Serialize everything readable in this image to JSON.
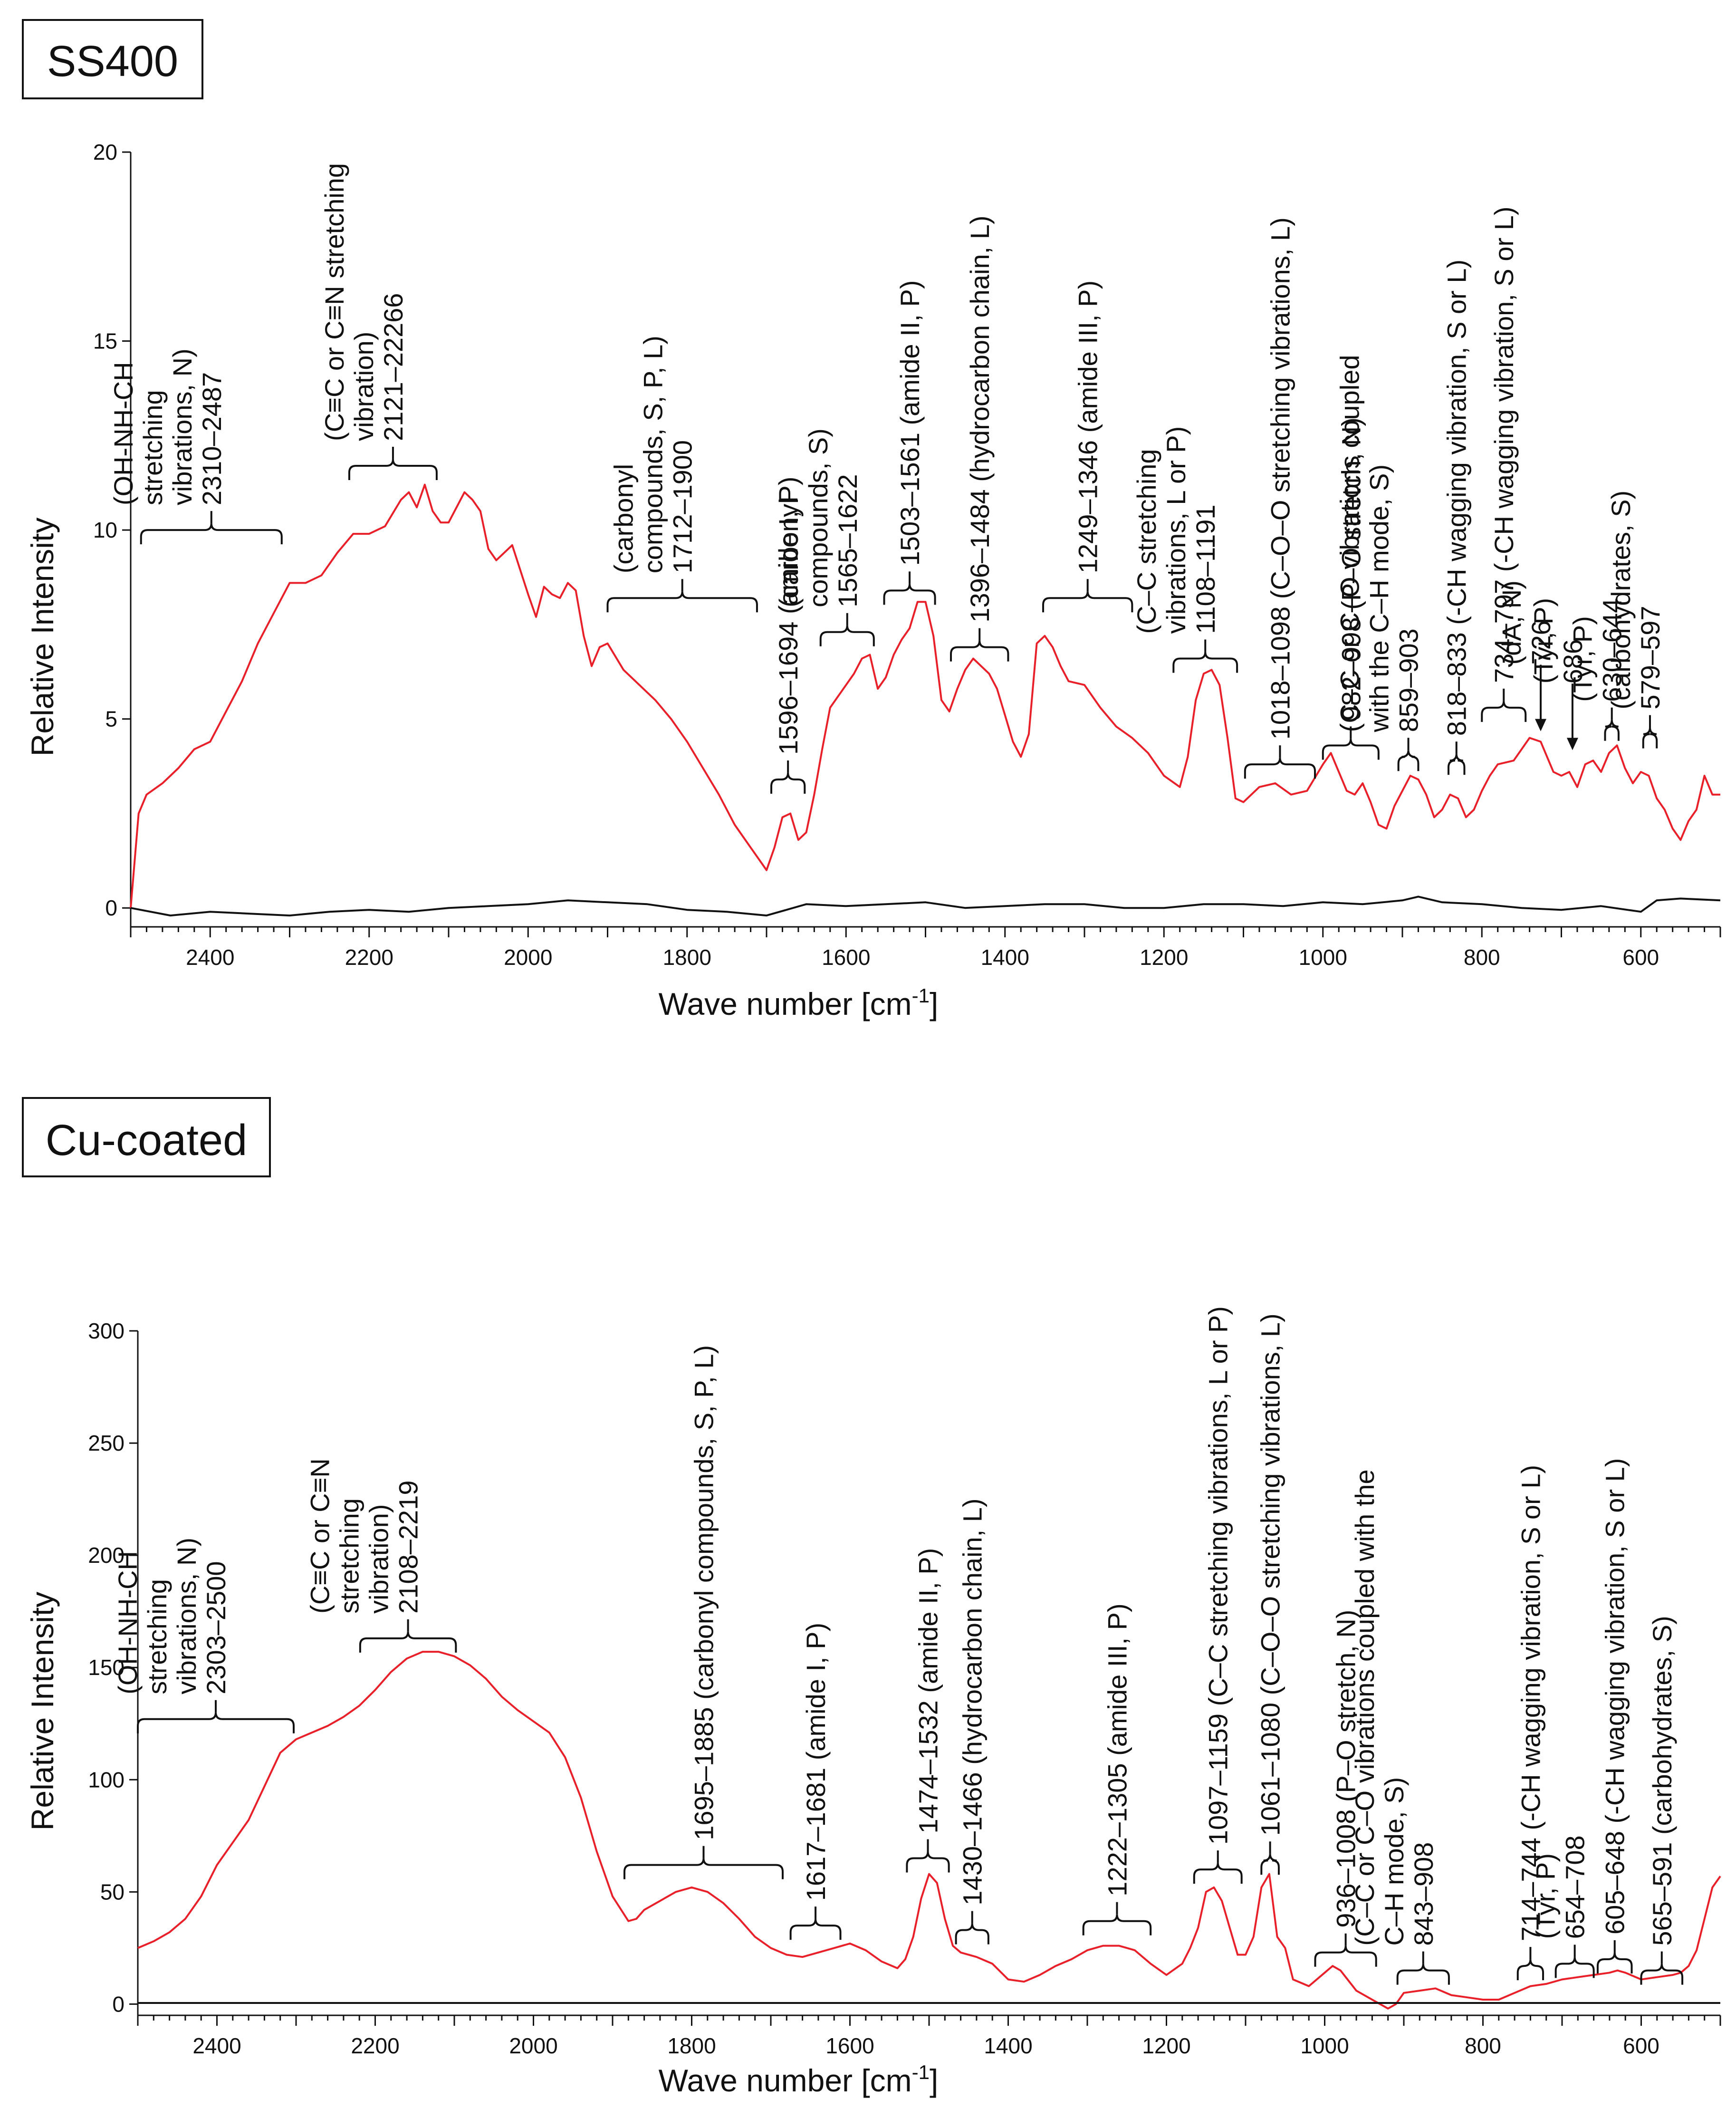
{
  "chart_data": [
    {
      "type": "line",
      "panel_label": "SS400",
      "xlabel_main": "Wave number [cm",
      "xlabel_sup": "-1",
      "xlabel_end": "]",
      "ylabel": "Relative Intensity",
      "xlim": [
        2500,
        500
      ],
      "ylim": [
        -0.5,
        20
      ],
      "xticks": [
        2400,
        2200,
        2000,
        1800,
        1600,
        1400,
        1200,
        1000,
        800,
        600
      ],
      "yticks": [
        0,
        5,
        10,
        15,
        20
      ],
      "series": [
        {
          "name": "SS400 spectrum",
          "color": "#e8202a",
          "x": [
            2500,
            2490,
            2480,
            2460,
            2440,
            2420,
            2400,
            2380,
            2360,
            2340,
            2320,
            2300,
            2280,
            2260,
            2240,
            2220,
            2200,
            2180,
            2160,
            2150,
            2140,
            2130,
            2120,
            2110,
            2100,
            2090,
            2080,
            2070,
            2060,
            2050,
            2040,
            2030,
            2020,
            2000,
            1990,
            1980,
            1970,
            1960,
            1950,
            1940,
            1930,
            1920,
            1910,
            1900,
            1880,
            1860,
            1840,
            1820,
            1800,
            1780,
            1760,
            1740,
            1720,
            1710,
            1700,
            1690,
            1680,
            1670,
            1660,
            1650,
            1640,
            1630,
            1620,
            1610,
            1600,
            1590,
            1580,
            1570,
            1560,
            1550,
            1540,
            1530,
            1520,
            1510,
            1500,
            1490,
            1480,
            1470,
            1460,
            1450,
            1440,
            1430,
            1420,
            1410,
            1400,
            1390,
            1380,
            1370,
            1360,
            1350,
            1340,
            1330,
            1320,
            1300,
            1280,
            1260,
            1240,
            1220,
            1200,
            1180,
            1170,
            1160,
            1150,
            1140,
            1130,
            1120,
            1110,
            1100,
            1090,
            1080,
            1060,
            1040,
            1020,
            1000,
            990,
            980,
            970,
            960,
            950,
            940,
            930,
            920,
            910,
            900,
            890,
            880,
            870,
            860,
            850,
            840,
            830,
            820,
            810,
            800,
            790,
            780,
            760,
            740,
            726,
            710,
            700,
            690,
            680,
            670,
            660,
            650,
            640,
            630,
            620,
            610,
            600,
            590,
            580,
            570,
            560,
            550,
            540,
            530,
            520,
            510,
            500
          ],
          "y": [
            0,
            2.5,
            3.0,
            3.3,
            3.7,
            4.2,
            4.4,
            5.2,
            6.0,
            7.0,
            7.8,
            8.6,
            8.6,
            8.8,
            9.4,
            9.9,
            9.9,
            10.1,
            10.8,
            11.0,
            10.6,
            11.2,
            10.5,
            10.2,
            10.2,
            10.6,
            11.0,
            10.8,
            10.5,
            9.5,
            9.2,
            9.4,
            9.6,
            8.3,
            7.7,
            8.5,
            8.3,
            8.2,
            8.6,
            8.4,
            7.2,
            6.4,
            6.9,
            7.0,
            6.3,
            5.9,
            5.5,
            5.0,
            4.4,
            3.7,
            3.0,
            2.2,
            1.6,
            1.3,
            1.0,
            1.6,
            2.4,
            2.5,
            1.8,
            2.0,
            3.0,
            4.2,
            5.3,
            5.6,
            5.9,
            6.2,
            6.6,
            6.7,
            5.8,
            6.1,
            6.7,
            7.1,
            7.4,
            8.1,
            8.1,
            7.2,
            5.5,
            5.2,
            5.8,
            6.3,
            6.6,
            6.4,
            6.2,
            5.8,
            5.1,
            4.4,
            4.0,
            4.6,
            7.0,
            7.2,
            6.9,
            6.4,
            6.0,
            5.9,
            5.3,
            4.8,
            4.5,
            4.1,
            3.5,
            3.2,
            4.0,
            5.5,
            6.2,
            6.3,
            5.9,
            4.5,
            2.9,
            2.8,
            3.0,
            3.2,
            3.3,
            3.0,
            3.1,
            3.8,
            4.1,
            3.6,
            3.1,
            3.0,
            3.3,
            2.8,
            2.2,
            2.1,
            2.7,
            3.1,
            3.5,
            3.4,
            3.0,
            2.4,
            2.6,
            3.0,
            2.9,
            2.4,
            2.6,
            3.1,
            3.5,
            3.8,
            3.9,
            4.5,
            4.4,
            3.6,
            3.5,
            3.6,
            3.2,
            3.8,
            3.9,
            3.6,
            4.1,
            4.3,
            3.7,
            3.3,
            3.6,
            3.5,
            2.9,
            2.6,
            2.1,
            1.8,
            2.3,
            2.6,
            3.5,
            3.0,
            3.0
          ]
        },
        {
          "name": "SS400 baseline",
          "color": "#111111",
          "x": [
            2500,
            2450,
            2400,
            2350,
            2300,
            2250,
            2200,
            2150,
            2100,
            2050,
            2000,
            1950,
            1900,
            1850,
            1800,
            1750,
            1700,
            1650,
            1600,
            1550,
            1500,
            1450,
            1400,
            1350,
            1300,
            1250,
            1200,
            1150,
            1100,
            1050,
            1000,
            950,
            900,
            880,
            850,
            800,
            750,
            700,
            650,
            600,
            580,
            550,
            500
          ],
          "y": [
            0,
            -0.2,
            -0.1,
            -0.15,
            -0.2,
            -0.1,
            -0.05,
            -0.1,
            0.0,
            0.05,
            0.1,
            0.2,
            0.15,
            0.1,
            -0.05,
            -0.1,
            -0.2,
            0.1,
            0.05,
            0.1,
            0.15,
            0.0,
            0.05,
            0.1,
            0.1,
            0.0,
            0.0,
            0.1,
            0.1,
            0.05,
            0.15,
            0.1,
            0.2,
            0.3,
            0.15,
            0.1,
            0.0,
            -0.05,
            0.05,
            -0.1,
            0.2,
            0.25,
            0.2
          ]
        }
      ],
      "annotations": [
        {
          "text": "2310–2487",
          "lines": [
            "(OH-NH-CH",
            "stretching",
            "vibrations, N)"
          ],
          "x1": 2487,
          "x2": 2310,
          "ybrace": 10.0
        },
        {
          "text": "2121–22266",
          "lines": [
            "(C≡C or C≡N stretching",
            "vibration)"
          ],
          "x1": 2225,
          "x2": 2115,
          "ybrace": 11.7
        },
        {
          "text": "1712–1900",
          "lines": [
            "(carbonyl",
            "compounds, S, P, L)"
          ],
          "x1": 1900,
          "x2": 1712,
          "ybrace": 8.2
        },
        {
          "text": "1596–1694 (amide I, P)",
          "lines": [],
          "x1": 1694,
          "x2": 1652,
          "ybrace": 3.4
        },
        {
          "text": "1565–1622",
          "lines": [
            "(carbonyl",
            "compounds, S)"
          ],
          "x1": 1632,
          "x2": 1565,
          "ybrace": 7.3
        },
        {
          "text": "1503–1561 (amide II, P)",
          "lines": [],
          "x1": 1552,
          "x2": 1488,
          "ybrace": 8.4
        },
        {
          "text": "1396–1484 (hydrocarbon chain, L)",
          "lines": [],
          "x1": 1468,
          "x2": 1396,
          "ybrace": 6.9
        },
        {
          "text": "1249–1346 (amide III, P)",
          "lines": [],
          "x1": 1352,
          "x2": 1240,
          "ybrace": 8.2
        },
        {
          "text": "1108–1191",
          "lines": [
            "(C–C stretching",
            "vibrations, L or P)"
          ],
          "x1": 1188,
          "x2": 1108,
          "ybrace": 6.6
        },
        {
          "text": "1018–1098 (C–O–O stretching vibrations, L)",
          "lines": [],
          "x1": 1098,
          "x2": 1010,
          "ybrace": 3.8
        },
        {
          "text": "982–998 (P–O stretch, N)",
          "lines": [],
          "x1": 1000,
          "x2": 930,
          "ybrace": 4.3
        },
        {
          "text": "859–903",
          "lines": [
            "(C–C or C–O vibrations coupled",
            "with the C–H mode, S)"
          ],
          "x1": 905,
          "x2": 880,
          "ybrace": 4.0
        },
        {
          "text": "818–833 (-CH wagging vibration, S or L)",
          "lines": [],
          "x1": 842,
          "x2": 822,
          "ybrace": 3.9
        },
        {
          "text": "734–797 (-CH wagging vibration, S or L)",
          "lines": [],
          "x1": 800,
          "x2": 745,
          "ybrace": 5.3
        },
        {
          "text": "726",
          "lines": [
            "(dA, N)"
          ],
          "arrow_x": 726,
          "arrow_y": 4.6
        },
        {
          "text": "686",
          "lines": [
            "(Tyr, P)"
          ],
          "arrow_x": 686,
          "arrow_y": 4.1
        },
        {
          "text": "630–644",
          "lines": [
            "(Tyr, P)"
          ],
          "x1": 645,
          "x2": 628,
          "ybrace": 4.8
        },
        {
          "text": "579–597",
          "lines": [
            "(carbohydrates, S)"
          ],
          "x1": 597,
          "x2": 580,
          "ybrace": 4.6
        }
      ]
    },
    {
      "type": "line",
      "panel_label": "Cu-coated",
      "xlabel_main": "Wave number [cm",
      "xlabel_sup": "-1",
      "xlabel_end": "]",
      "ylabel": "Relative Intensity",
      "xlim": [
        2500,
        500
      ],
      "ylim": [
        -5,
        300
      ],
      "xticks": [
        2400,
        2200,
        2000,
        1800,
        1600,
        1400,
        1200,
        1000,
        800,
        600
      ],
      "yticks": [
        0,
        50,
        100,
        150,
        200,
        250,
        300
      ],
      "series": [
        {
          "name": "Cu-coated spectrum",
          "color": "#e8202a",
          "x": [
            2500,
            2480,
            2460,
            2440,
            2420,
            2400,
            2380,
            2360,
            2340,
            2320,
            2300,
            2280,
            2260,
            2240,
            2220,
            2200,
            2180,
            2160,
            2140,
            2120,
            2100,
            2080,
            2060,
            2040,
            2020,
            2000,
            1980,
            1960,
            1940,
            1920,
            1900,
            1880,
            1870,
            1860,
            1840,
            1820,
            1800,
            1780,
            1760,
            1740,
            1720,
            1700,
            1680,
            1660,
            1640,
            1620,
            1600,
            1580,
            1560,
            1540,
            1530,
            1520,
            1510,
            1500,
            1490,
            1480,
            1470,
            1460,
            1440,
            1420,
            1400,
            1380,
            1360,
            1340,
            1320,
            1300,
            1280,
            1260,
            1240,
            1220,
            1200,
            1180,
            1170,
            1160,
            1150,
            1140,
            1130,
            1120,
            1110,
            1100,
            1090,
            1080,
            1070,
            1060,
            1050,
            1040,
            1020,
            1000,
            990,
            980,
            960,
            940,
            920,
            910,
            900,
            880,
            860,
            840,
            820,
            800,
            780,
            760,
            740,
            720,
            700,
            680,
            660,
            640,
            630,
            620,
            600,
            580,
            560,
            550,
            540,
            530,
            520,
            510,
            500
          ],
          "y": [
            25,
            28,
            32,
            38,
            48,
            62,
            72,
            82,
            97,
            112,
            118,
            121,
            124,
            128,
            133,
            140,
            148,
            154,
            157,
            157,
            155,
            151,
            145,
            137,
            131,
            126,
            121,
            110,
            92,
            68,
            48,
            37,
            38,
            42,
            46,
            50,
            52,
            50,
            45,
            38,
            30,
            25,
            22,
            21,
            23,
            25,
            27,
            24,
            19,
            16,
            20,
            30,
            47,
            58,
            54,
            38,
            26,
            23,
            21,
            18,
            11,
            10,
            13,
            17,
            20,
            24,
            26,
            26,
            24,
            18,
            13,
            18,
            25,
            34,
            50,
            52,
            46,
            34,
            22,
            22,
            30,
            52,
            58,
            30,
            25,
            11,
            8,
            14,
            17,
            15,
            6,
            2,
            -2,
            0,
            5,
            6,
            7,
            4,
            3,
            2,
            2,
            5,
            8,
            9,
            11,
            12,
            13,
            14,
            15,
            14,
            11,
            12,
            13,
            14,
            17,
            24,
            38,
            52,
            57
          ]
        },
        {
          "name": "Cu-coated baseline",
          "color": "#111111",
          "x": [
            2500,
            2000,
            1500,
            1000,
            500
          ],
          "y": [
            0.5,
            0.5,
            0.5,
            0.5,
            0.5
          ]
        }
      ],
      "annotations": [
        {
          "text": "2303–2500",
          "lines": [
            "(OH-NH-CH",
            "stretching",
            "vibrations, N)"
          ],
          "x1": 2500,
          "x2": 2303,
          "ybrace": 127
        },
        {
          "text": "2108–2219",
          "lines": [
            "(C≡C or C≡N",
            "stretching",
            "vibration)"
          ],
          "x1": 2219,
          "x2": 2098,
          "ybrace": 163
        },
        {
          "text": "1695–1885  (carbonyl compounds, S, P, L)",
          "lines": [],
          "x1": 1885,
          "x2": 1685,
          "ybrace": 62
        },
        {
          "text": "1617–1681 (amide I, P)",
          "lines": [],
          "x1": 1675,
          "x2": 1612,
          "ybrace": 35
        },
        {
          "text": "1474–1532 (amide II, P)",
          "lines": [],
          "x1": 1528,
          "x2": 1475,
          "ybrace": 65
        },
        {
          "text": "1430–1466 (hydrocarbon chain, L)",
          "lines": [],
          "x1": 1466,
          "x2": 1425,
          "ybrace": 33
        },
        {
          "text": "1222–1305 (amide III, P)",
          "lines": [],
          "x1": 1305,
          "x2": 1220,
          "ybrace": 37
        },
        {
          "text": "1097–1159 (C–C stretching vibrations, L or P)",
          "lines": [],
          "x1": 1165,
          "x2": 1105,
          "ybrace": 60
        },
        {
          "text": "1061–1080 (C–O–O stretching vibrations, L)",
          "lines": [],
          "x1": 1080,
          "x2": 1058,
          "ybrace": 64
        },
        {
          "text": "936–1008 (P–O stretch, N)",
          "lines": [],
          "x1": 1012,
          "x2": 935,
          "ybrace": 23
        },
        {
          "text": "843–908",
          "lines": [
            "(C–C or C–O vibrations coupled with the",
            "C–H mode, S)"
          ],
          "x1": 908,
          "x2": 843,
          "ybrace": 15
        },
        {
          "text": "714–744 (-CH wagging vibration, S or L)",
          "lines": [],
          "x1": 756,
          "x2": 724,
          "ybrace": 17
        },
        {
          "text": "654–708",
          "lines": [
            "(Tyr, P)"
          ],
          "x1": 708,
          "x2": 660,
          "ybrace": 18
        },
        {
          "text": "605–648 (-CH wagging vibration, S or L)",
          "lines": [],
          "x1": 655,
          "x2": 612,
          "ybrace": 20
        },
        {
          "text": "565–591 (carbohydrates, S)",
          "lines": [],
          "x1": 600,
          "x2": 548,
          "ybrace": 15
        }
      ]
    }
  ]
}
